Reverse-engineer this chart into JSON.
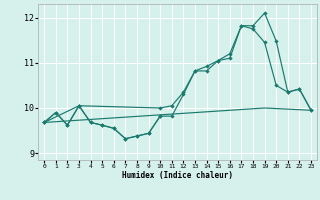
{
  "xlabel": "Humidex (Indice chaleur)",
  "xlim": [
    -0.5,
    23.5
  ],
  "ylim": [
    8.85,
    12.3
  ],
  "yticks": [
    9,
    10,
    11,
    12
  ],
  "xticks": [
    0,
    1,
    2,
    3,
    4,
    5,
    6,
    7,
    8,
    9,
    10,
    11,
    12,
    13,
    14,
    15,
    16,
    17,
    18,
    19,
    20,
    21,
    22,
    23
  ],
  "bg_color": "#d6f0ec",
  "grid_color": "#ffffff",
  "line_color": "#1a7a6e",
  "series": [
    {
      "x": [
        0,
        1,
        2,
        3,
        4,
        5,
        6,
        7,
        8,
        9,
        10
      ],
      "y": [
        9.68,
        9.9,
        9.62,
        10.05,
        9.68,
        9.62,
        9.55,
        9.32,
        9.38,
        9.44,
        9.82
      ]
    },
    {
      "x": [
        0,
        1,
        2,
        3,
        4,
        5,
        6,
        7,
        8,
        9,
        10,
        11,
        12,
        13,
        14,
        15,
        16,
        17,
        18,
        19,
        20,
        21,
        22,
        23
      ],
      "y": [
        9.68,
        9.9,
        9.62,
        10.05,
        9.68,
        9.62,
        9.55,
        9.32,
        9.38,
        9.44,
        9.82,
        9.82,
        10.3,
        10.82,
        10.82,
        11.05,
        11.1,
        11.82,
        11.75,
        11.45,
        10.5,
        10.35,
        10.42,
        9.95
      ]
    },
    {
      "x": [
        0,
        3,
        10,
        11,
        12,
        13,
        14,
        15,
        16,
        17,
        18,
        19,
        20,
        21,
        22,
        23
      ],
      "y": [
        9.68,
        10.05,
        10.0,
        10.05,
        10.35,
        10.82,
        10.92,
        11.05,
        11.2,
        11.82,
        11.82,
        12.1,
        11.48,
        10.35,
        10.42,
        9.95
      ]
    },
    {
      "x": [
        0,
        19,
        23
      ],
      "y": [
        9.68,
        10.0,
        9.95
      ]
    }
  ]
}
